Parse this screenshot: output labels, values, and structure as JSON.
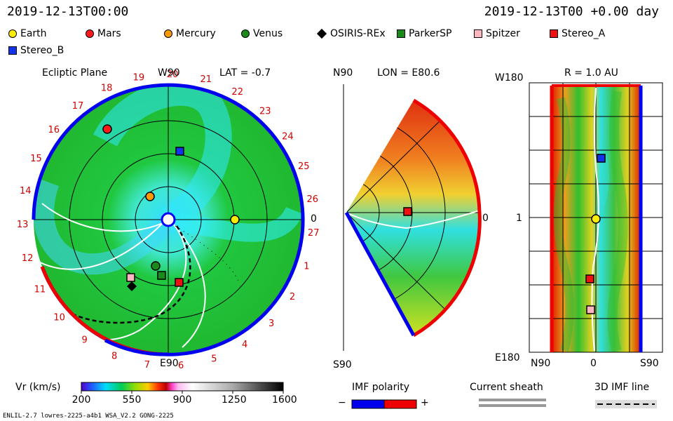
{
  "header": {
    "datetime_left": "2019-12-13T00:00",
    "datetime_right": "2019-12-13T00 +0.00 day"
  },
  "legend": [
    {
      "label": "Earth",
      "color": "#ffee00",
      "shape": "circle"
    },
    {
      "label": "Mars",
      "color": "#ff1a1a",
      "shape": "circle"
    },
    {
      "label": "Mercury",
      "color": "#ff9900",
      "shape": "circle"
    },
    {
      "label": "Venus",
      "color": "#1a8a1a",
      "shape": "circle"
    },
    {
      "label": "OSIRIS-REx",
      "color": "#000000",
      "shape": "diamond"
    },
    {
      "label": "ParkerSP",
      "color": "#1a8a1a",
      "shape": "square"
    },
    {
      "label": "Spitzer",
      "color": "#ffb6c1",
      "shape": "square"
    },
    {
      "label": "Stereo_A",
      "color": "#ee1111",
      "shape": "square"
    },
    {
      "label": "Stereo_B",
      "color": "#1133ee",
      "shape": "square"
    }
  ],
  "ecliptic": {
    "title": "Ecliptic Plane",
    "top_label": "W90",
    "lat_label": "LAT = -0.7",
    "bottom_label": "E90",
    "zero_label": "0",
    "sector_numbers": [
      "1",
      "2",
      "3",
      "4",
      "5",
      "6",
      "7",
      "8",
      "9",
      "10",
      "11",
      "12",
      "13",
      "14",
      "15",
      "16",
      "17",
      "18",
      "19",
      "20",
      "21",
      "22",
      "23",
      "24",
      "25",
      "26",
      "27"
    ]
  },
  "meridional": {
    "lon_label": "LON = E80.6",
    "top_label": "N90",
    "bottom_label": "S90",
    "zero_label": "0"
  },
  "radial": {
    "r_label": "R = 1.0 AU",
    "top_left": "W180",
    "bottom_left": "E180",
    "mid_left": "1",
    "x_left": "N90",
    "x_mid": "0",
    "x_right": "S90"
  },
  "colorbar": {
    "title": "Vr (km/s)",
    "ticks": [
      "200",
      "550",
      "900",
      "1250",
      "1600"
    ]
  },
  "imf_polarity": {
    "title": "IMF polarity",
    "minus": "−",
    "plus": "+"
  },
  "current_sheath": {
    "title": "Current sheath"
  },
  "imf_line": {
    "title": "3D IMF line"
  },
  "footer": {
    "left": "ENLIL-2.7 lowres-2225-a4b1 WSA_V2.2 GONG-2225"
  }
}
